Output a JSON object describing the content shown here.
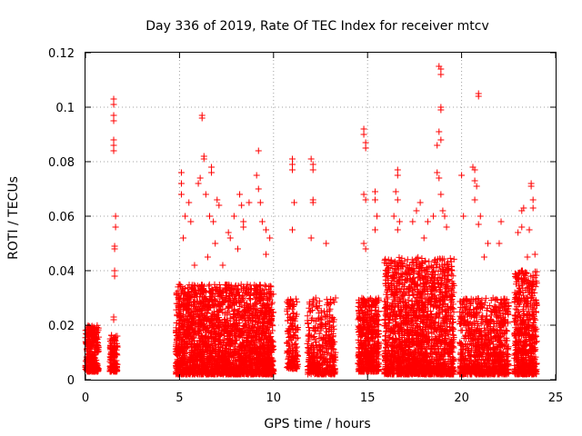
{
  "chart_data": {
    "type": "scatter",
    "title": "Day 336 of 2019, Rate Of TEC Index for receiver mtcv",
    "xlabel": "GPS time / hours",
    "ylabel": "ROTI / TECUs",
    "xlim": [
      0,
      25
    ],
    "ylim": [
      0,
      0.12
    ],
    "xticks": [
      "0",
      "5",
      "10",
      "15",
      "20",
      "25"
    ],
    "yticks": [
      "0",
      "0.02",
      "0.04",
      "0.06",
      "0.08",
      "0.1",
      "0.12"
    ],
    "grid": true,
    "marker": "+",
    "color": "#ff0000",
    "clusters": [
      {
        "x": [
          0.0,
          0.7
        ],
        "y": [
          0.003,
          0.02
        ],
        "n": 320
      },
      {
        "x": [
          1.3,
          1.7
        ],
        "y": [
          0.003,
          0.017
        ],
        "n": 140
      },
      {
        "x": [
          4.8,
          10.0
        ],
        "y": [
          0.002,
          0.035
        ],
        "n": 2600
      },
      {
        "x": [
          10.7,
          11.3
        ],
        "y": [
          0.004,
          0.03
        ],
        "n": 160
      },
      {
        "x": [
          11.8,
          13.3
        ],
        "y": [
          0.002,
          0.03
        ],
        "n": 420
      },
      {
        "x": [
          14.5,
          15.6
        ],
        "y": [
          0.003,
          0.03
        ],
        "n": 520
      },
      {
        "x": [
          15.9,
          19.6
        ],
        "y": [
          0.002,
          0.045
        ],
        "n": 1900
      },
      {
        "x": [
          19.9,
          22.5
        ],
        "y": [
          0.002,
          0.03
        ],
        "n": 900
      },
      {
        "x": [
          22.8,
          24.0
        ],
        "y": [
          0.002,
          0.04
        ],
        "n": 620
      }
    ],
    "points": [
      [
        1.5,
        0.103
      ],
      [
        1.5,
        0.101
      ],
      [
        1.5,
        0.097
      ],
      [
        1.5,
        0.095
      ],
      [
        1.5,
        0.088
      ],
      [
        1.5,
        0.086
      ],
      [
        1.5,
        0.084
      ],
      [
        1.6,
        0.06
      ],
      [
        1.6,
        0.056
      ],
      [
        1.55,
        0.049
      ],
      [
        1.55,
        0.048
      ],
      [
        1.55,
        0.04
      ],
      [
        1.55,
        0.038
      ],
      [
        1.5,
        0.023
      ],
      [
        1.5,
        0.022
      ],
      [
        5.1,
        0.076
      ],
      [
        5.1,
        0.072
      ],
      [
        5.1,
        0.068
      ],
      [
        5.3,
        0.06
      ],
      [
        5.5,
        0.065
      ],
      [
        5.6,
        0.058
      ],
      [
        5.2,
        0.052
      ],
      [
        6.2,
        0.097
      ],
      [
        6.2,
        0.096
      ],
      [
        6.3,
        0.082
      ],
      [
        6.3,
        0.081
      ],
      [
        6.1,
        0.074
      ],
      [
        6.0,
        0.072
      ],
      [
        6.4,
        0.068
      ],
      [
        6.7,
        0.078
      ],
      [
        6.7,
        0.076
      ],
      [
        6.6,
        0.06
      ],
      [
        6.8,
        0.058
      ],
      [
        7.0,
        0.066
      ],
      [
        7.1,
        0.064
      ],
      [
        6.9,
        0.05
      ],
      [
        7.6,
        0.054
      ],
      [
        7.7,
        0.052
      ],
      [
        7.9,
        0.06
      ],
      [
        8.2,
        0.068
      ],
      [
        8.3,
        0.064
      ],
      [
        8.4,
        0.058
      ],
      [
        8.4,
        0.056
      ],
      [
        8.7,
        0.065
      ],
      [
        9.2,
        0.084
      ],
      [
        9.1,
        0.075
      ],
      [
        9.2,
        0.07
      ],
      [
        9.4,
        0.058
      ],
      [
        9.6,
        0.055
      ],
      [
        9.8,
        0.052
      ],
      [
        9.3,
        0.065
      ],
      [
        8.1,
        0.048
      ],
      [
        6.5,
        0.045
      ],
      [
        5.8,
        0.042
      ],
      [
        7.3,
        0.042
      ],
      [
        9.6,
        0.046
      ],
      [
        11.0,
        0.081
      ],
      [
        11.0,
        0.079
      ],
      [
        11.0,
        0.077
      ],
      [
        11.1,
        0.065
      ],
      [
        11.0,
        0.055
      ],
      [
        12.0,
        0.081
      ],
      [
        12.1,
        0.079
      ],
      [
        12.1,
        0.077
      ],
      [
        12.1,
        0.066
      ],
      [
        12.1,
        0.065
      ],
      [
        12.0,
        0.052
      ],
      [
        12.8,
        0.05
      ],
      [
        13.3,
        0.03
      ],
      [
        14.8,
        0.092
      ],
      [
        14.8,
        0.09
      ],
      [
        14.9,
        0.087
      ],
      [
        14.9,
        0.085
      ],
      [
        14.8,
        0.068
      ],
      [
        14.9,
        0.066
      ],
      [
        14.8,
        0.05
      ],
      [
        14.9,
        0.048
      ],
      [
        15.4,
        0.069
      ],
      [
        15.4,
        0.066
      ],
      [
        15.5,
        0.06
      ],
      [
        15.4,
        0.055
      ],
      [
        16.6,
        0.077
      ],
      [
        16.6,
        0.075
      ],
      [
        16.5,
        0.069
      ],
      [
        16.6,
        0.066
      ],
      [
        16.4,
        0.06
      ],
      [
        16.7,
        0.058
      ],
      [
        16.6,
        0.055
      ],
      [
        17.4,
        0.058
      ],
      [
        17.6,
        0.062
      ],
      [
        18.0,
        0.052
      ],
      [
        17.8,
        0.065
      ],
      [
        18.2,
        0.058
      ],
      [
        18.5,
        0.06
      ],
      [
        18.8,
        0.115
      ],
      [
        18.9,
        0.114
      ],
      [
        18.9,
        0.112
      ],
      [
        18.9,
        0.1
      ],
      [
        18.9,
        0.099
      ],
      [
        18.8,
        0.091
      ],
      [
        18.9,
        0.088
      ],
      [
        18.7,
        0.086
      ],
      [
        18.7,
        0.076
      ],
      [
        18.8,
        0.074
      ],
      [
        18.9,
        0.068
      ],
      [
        19.0,
        0.062
      ],
      [
        19.1,
        0.06
      ],
      [
        19.2,
        0.056
      ],
      [
        20.0,
        0.075
      ],
      [
        20.1,
        0.06
      ],
      [
        20.6,
        0.078
      ],
      [
        20.7,
        0.077
      ],
      [
        20.7,
        0.073
      ],
      [
        20.8,
        0.071
      ],
      [
        20.7,
        0.066
      ],
      [
        20.9,
        0.104
      ],
      [
        20.9,
        0.105
      ],
      [
        21.0,
        0.06
      ],
      [
        20.9,
        0.057
      ],
      [
        21.4,
        0.05
      ],
      [
        21.2,
        0.045
      ],
      [
        22.1,
        0.058
      ],
      [
        22.0,
        0.05
      ],
      [
        23.0,
        0.054
      ],
      [
        23.2,
        0.056
      ],
      [
        23.3,
        0.063
      ],
      [
        23.2,
        0.062
      ],
      [
        23.7,
        0.072
      ],
      [
        23.7,
        0.071
      ],
      [
        23.8,
        0.066
      ],
      [
        23.8,
        0.063
      ],
      [
        23.6,
        0.055
      ],
      [
        23.9,
        0.046
      ],
      [
        23.5,
        0.045
      ]
    ]
  }
}
